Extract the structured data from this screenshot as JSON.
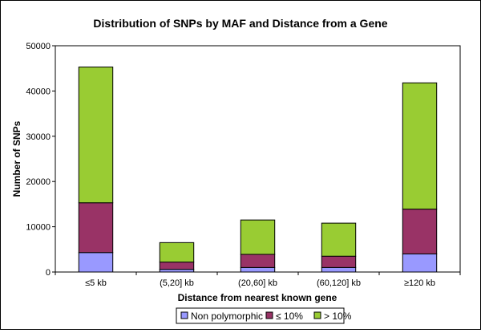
{
  "chart_data": {
    "type": "bar",
    "stacked": true,
    "title": "Distribution of SNPs by MAF and Distance from a Gene",
    "xlabel": "Distance from nearest known gene",
    "ylabel": "Number of SNPs",
    "categories": [
      "≤5 kb",
      "(5,20] kb",
      "(20,60] kb",
      "(60,120] kb",
      "≥120 kb"
    ],
    "ylim": [
      0,
      50000
    ],
    "yticks": [
      0,
      10000,
      20000,
      30000,
      40000,
      50000
    ],
    "grid": false,
    "legend_position": "bottom",
    "series": [
      {
        "name": "Non polymorphic",
        "color": "#9999ff",
        "values": [
          4300,
          600,
          1000,
          1000,
          4000
        ]
      },
      {
        "name": "≤ 10%",
        "color": "#993366",
        "values": [
          11000,
          1600,
          2900,
          2500,
          9900
        ]
      },
      {
        "name": "> 10%",
        "color": "#99cc33",
        "values": [
          30000,
          4300,
          7600,
          7300,
          27900
        ]
      }
    ]
  }
}
